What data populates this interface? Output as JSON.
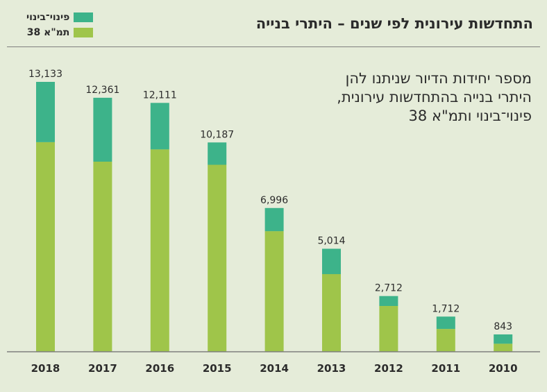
{
  "title": "התחדשות עירונית לפי שנים – היתרי בנייה",
  "legend": [
    {
      "label": "פינוי־בינוי",
      "color": "#3db38a"
    },
    {
      "label": "תמ\"א 38",
      "color": "#9fc54a"
    }
  ],
  "subtitle_lines": [
    "מספר יחידות הדיור שניתנו להן",
    "היתרי בנייה בהתחדשות עירונית,",
    "פינוי־בינוי ותמ\"א 38"
  ],
  "chart_data": {
    "type": "bar",
    "stacked": true,
    "categories": [
      "2018",
      "2017",
      "2016",
      "2015",
      "2014",
      "2013",
      "2012",
      "2011",
      "2010"
    ],
    "series": [
      {
        "name": "תמ\"א 38",
        "color": "#9fc54a",
        "values": [
          10200,
          9250,
          9850,
          9100,
          5870,
          3780,
          2230,
          1110,
          390
        ]
      },
      {
        "name": "פינוי־בינוי",
        "color": "#3db38a",
        "values": [
          2933,
          3111,
          2261,
          1087,
          1126,
          1234,
          482,
          602,
          453
        ]
      }
    ],
    "totals": [
      "13,133",
      "12,361",
      "12,111",
      "10,187",
      "6,996",
      "5,014",
      "2,712",
      "1,712",
      "843"
    ],
    "ylim": [
      0,
      13133
    ],
    "grid": false
  }
}
